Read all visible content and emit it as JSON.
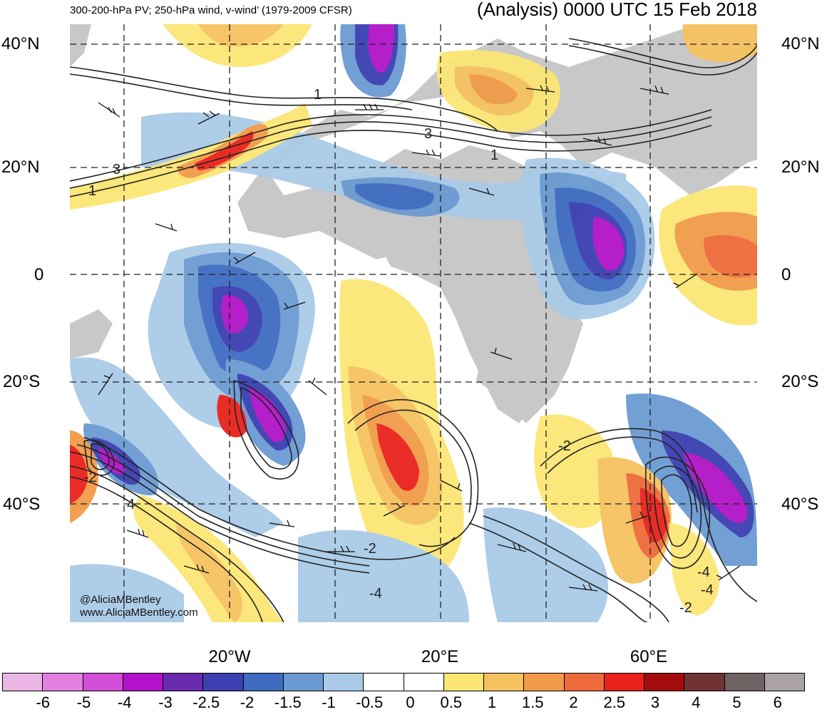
{
  "title_left": "300-200-hPa PV; 250-hPa wind, v-wind’ (1979-2009 CFSR)",
  "title_right": "(Analysis) 0000 UTC 15 Feb 2018",
  "lat_labels": [
    "40°N",
    "20°N",
    "0",
    "20°S",
    "40°S"
  ],
  "lon_labels": [
    "20°W",
    "20°E",
    "60°E"
  ],
  "colorbar": {
    "colors": [
      "#e9b6e6",
      "#e27fe0",
      "#d14fd6",
      "#b114c8",
      "#6a2aae",
      "#3b3fb0",
      "#3f6cc1",
      "#6b9ad2",
      "#a9cbe8",
      "#ffffff",
      "#ffffff",
      "#fbe674",
      "#f5c260",
      "#f19a47",
      "#ee6a3a",
      "#e8211b",
      "#a30c0c",
      "#713232",
      "#6e6262",
      "#aba3a3"
    ],
    "labels": [
      "-6",
      "-5",
      "-4",
      "-3",
      "-2.5",
      "-2",
      "-1.5",
      "-1",
      "-0.5",
      "0",
      "0.5",
      "1",
      "1.5",
      "2",
      "2.5",
      "3",
      "4",
      "5",
      "6"
    ]
  },
  "contour_labels": [
    "3",
    "1",
    "3",
    "1",
    "3",
    "1",
    "-2",
    "-2",
    "-4",
    "-4",
    "-2",
    "-2",
    "-4",
    "-2",
    "4",
    "-2",
    "4"
  ],
  "credit_lines": [
    "@AliciaMBentley",
    "www.AliciaMBentley.com"
  ]
}
